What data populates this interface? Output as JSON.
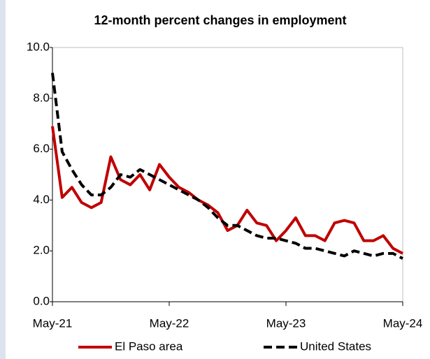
{
  "chart_data": {
    "type": "line",
    "title": "12-month percent changes in employment",
    "categories": [
      "May-21",
      null,
      null,
      null,
      null,
      null,
      null,
      null,
      null,
      null,
      null,
      null,
      "May-22",
      null,
      null,
      null,
      null,
      null,
      null,
      null,
      null,
      null,
      null,
      null,
      "May-23",
      null,
      null,
      null,
      null,
      null,
      null,
      null,
      null,
      null,
      null,
      null,
      "May-24"
    ],
    "series": [
      {
        "name": "El Paso area",
        "color": "#c00000",
        "style": "solid",
        "values": [
          6.9,
          4.1,
          4.5,
          3.9,
          3.7,
          3.9,
          5.7,
          4.8,
          4.6,
          5.0,
          4.4,
          5.4,
          4.9,
          4.5,
          4.3,
          4.0,
          3.8,
          3.5,
          2.8,
          3.0,
          3.6,
          3.1,
          3.0,
          2.4,
          2.8,
          3.3,
          2.6,
          2.6,
          2.4,
          3.1,
          3.2,
          3.1,
          2.4,
          2.4,
          2.6,
          2.1,
          1.9
        ]
      },
      {
        "name": "United States",
        "color": "#000000",
        "style": "dashed",
        "values": [
          9.0,
          5.9,
          5.2,
          4.6,
          4.2,
          4.2,
          4.5,
          5.0,
          4.9,
          5.2,
          5.0,
          4.8,
          4.6,
          4.4,
          4.2,
          4.0,
          3.7,
          3.3,
          3.0,
          3.0,
          2.8,
          2.6,
          2.5,
          2.5,
          2.4,
          2.3,
          2.1,
          2.1,
          2.0,
          1.9,
          1.8,
          2.0,
          1.9,
          1.8,
          1.9,
          1.9,
          1.7
        ]
      }
    ],
    "ylim": [
      0,
      10
    ],
    "yticks": [
      {
        "value": 0,
        "label": "0.0"
      },
      {
        "value": 2,
        "label": "2.0"
      },
      {
        "value": 4,
        "label": "4.0"
      },
      {
        "value": 6,
        "label": "6.0"
      },
      {
        "value": 8,
        "label": "8.0"
      },
      {
        "value": 10,
        "label": "10.0"
      }
    ],
    "grid": false,
    "legend": "bottom"
  }
}
